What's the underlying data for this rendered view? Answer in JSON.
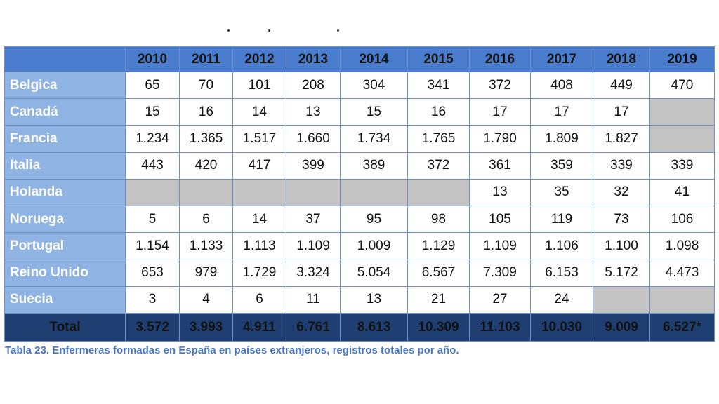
{
  "table": {
    "years": [
      "2010",
      "2011",
      "2012",
      "2013",
      "2014",
      "2015",
      "2016",
      "2017",
      "2018",
      "2019"
    ],
    "rows": [
      {
        "country": "Belgica",
        "values": [
          "65",
          "70",
          "101",
          "208",
          "304",
          "341",
          "372",
          "408",
          "449",
          "470"
        ]
      },
      {
        "country": "Canadá",
        "values": [
          "15",
          "16",
          "14",
          "13",
          "15",
          "16",
          "17",
          "17",
          "17",
          ""
        ]
      },
      {
        "country": "Francia",
        "values": [
          "1.234",
          "1.365",
          "1.517",
          "1.660",
          "1.734",
          "1.765",
          "1.790",
          "1.809",
          "1.827",
          ""
        ]
      },
      {
        "country": "Italia",
        "values": [
          "443",
          "420",
          "417",
          "399",
          "389",
          "372",
          "361",
          "359",
          "339",
          "339"
        ]
      },
      {
        "country": "Holanda",
        "values": [
          "",
          "",
          "",
          "",
          "",
          "",
          "13",
          "35",
          "32",
          "41"
        ]
      },
      {
        "country": "Noruega",
        "values": [
          "5",
          "6",
          "14",
          "37",
          "95",
          "98",
          "105",
          "119",
          "73",
          "106"
        ]
      },
      {
        "country": "Portugal",
        "values": [
          "1.154",
          "1.133",
          "1.113",
          "1.109",
          "1.009",
          "1.129",
          "1.109",
          "1.106",
          "1.100",
          "1.098"
        ]
      },
      {
        "country": "Reino Unido",
        "values": [
          "653",
          "979",
          "1.729",
          "3.324",
          "5.054",
          "6.567",
          "7.309",
          "6.153",
          "5.172",
          "4.473"
        ]
      },
      {
        "country": "Suecia",
        "values": [
          "3",
          "4",
          "6",
          "11",
          "13",
          "21",
          "27",
          "24",
          "",
          ""
        ]
      }
    ],
    "total": {
      "label": "Total",
      "values": [
        "3.572",
        "3.993",
        "4.911",
        "6.761",
        "8.613",
        "10.309",
        "11.103",
        "10.030",
        "9.009",
        "6.527*"
      ]
    }
  },
  "caption": "Tabla 23. Enfermeras formadas en España en países extranjeros, registros totales por año.",
  "colors": {
    "header_bg": "#4a7ccd",
    "country_bg": "#8fb3e3",
    "total_bg": "#1f3f73",
    "empty_cell": "#c3c3c3",
    "caption": "#4a78c0"
  }
}
